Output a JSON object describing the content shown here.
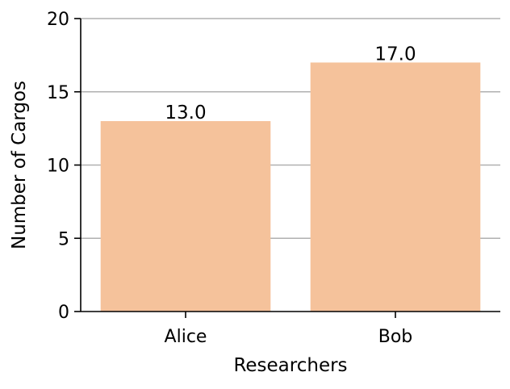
{
  "chart_data": {
    "type": "bar",
    "title": "",
    "xlabel": "Researchers",
    "ylabel": "Number of Cargos",
    "categories": [
      "Alice",
      "Bob"
    ],
    "values": [
      13.0,
      17.0
    ],
    "data_labels": [
      "13.0",
      "17.0"
    ],
    "ylim": [
      0,
      20
    ],
    "yticks": [
      0,
      5,
      10,
      15,
      20
    ],
    "ytick_labels": [
      "0",
      "5",
      "10",
      "15",
      "20"
    ],
    "grid": "horizontal",
    "legend": "none",
    "colors": {
      "bar": "#f5c29b",
      "grid": "#b0b0b0",
      "axis": "#000000"
    }
  }
}
